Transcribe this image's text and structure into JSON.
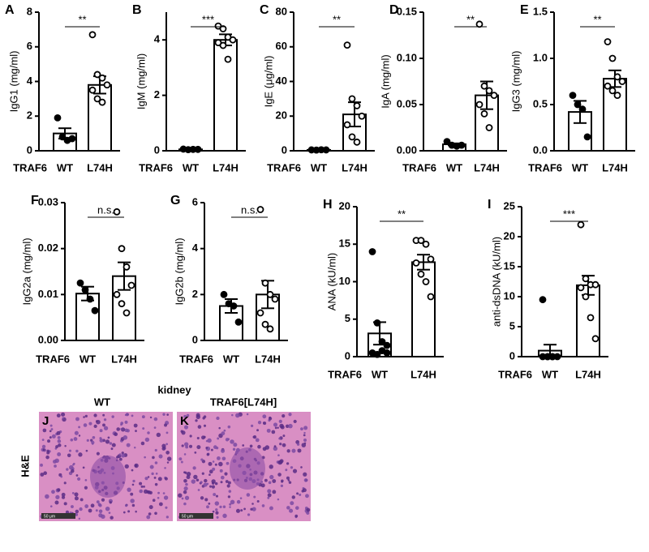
{
  "chart_data": [
    {
      "type": "bar",
      "panel": "A",
      "ylabel": "IgG1 (mg/ml)",
      "group_label": "TRAF6",
      "categories": [
        "WT",
        "L74H"
      ],
      "values": [
        1.0,
        3.8
      ],
      "errors": [
        0.3,
        0.5
      ],
      "points": [
        [
          1.9,
          0.8,
          0.6,
          0.7
        ],
        [
          6.7,
          4.4,
          4.2,
          3.8,
          3.5,
          3.0,
          2.8
        ]
      ],
      "significance": "**",
      "ylim": [
        0,
        8
      ],
      "yticks": [
        0,
        2,
        4,
        6,
        8
      ]
    },
    {
      "type": "bar",
      "panel": "B",
      "ylabel": "IgM (mg/ml)",
      "group_label": "TRAF6",
      "categories": [
        "WT",
        "L74H"
      ],
      "values": [
        0.05,
        4.0
      ],
      "errors": [
        0.02,
        0.2
      ],
      "points": [
        [
          0.06,
          0.04,
          0.05,
          0.05
        ],
        [
          4.5,
          4.4,
          4.1,
          4.0,
          3.9,
          3.8,
          3.3
        ]
      ],
      "significance": "***",
      "ylim": [
        0,
        5
      ],
      "yticks": [
        0,
        2,
        4
      ]
    },
    {
      "type": "bar",
      "panel": "C",
      "ylabel": "IgE (μg/ml)",
      "group_label": "TRAF6",
      "categories": [
        "WT",
        "L74H"
      ],
      "values": [
        0.5,
        21
      ],
      "errors": [
        0.2,
        7
      ],
      "points": [
        [
          0.5,
          0.4,
          0.6,
          0.5
        ],
        [
          61,
          30,
          26,
          20,
          15,
          8,
          5
        ]
      ],
      "significance": "**",
      "ylim": [
        0,
        80
      ],
      "yticks": [
        0,
        20,
        40,
        60,
        80
      ]
    },
    {
      "type": "bar",
      "panel": "D",
      "ylabel": "IgA (mg/ml)",
      "group_label": "TRAF6",
      "categories": [
        "WT",
        "L74H"
      ],
      "values": [
        0.007,
        0.06
      ],
      "errors": [
        0.001,
        0.015
      ],
      "points": [
        [
          0.01,
          0.006,
          0.005,
          0.006
        ],
        [
          0.137,
          0.07,
          0.065,
          0.06,
          0.05,
          0.04,
          0.025
        ]
      ],
      "significance": "**",
      "ylim": [
        0,
        0.15
      ],
      "yticks": [
        {
          "value": 0,
          "label": "0.00"
        },
        {
          "value": 0.05,
          "label": "0.05"
        },
        {
          "value": 0.1,
          "label": "0.10"
        },
        {
          "value": 0.15,
          "label": "0.15"
        }
      ]
    },
    {
      "type": "bar",
      "panel": "E",
      "ylabel": "IgG3 (mg/ml)",
      "group_label": "TRAF6",
      "categories": [
        "WT",
        "L74H"
      ],
      "values": [
        0.42,
        0.78
      ],
      "errors": [
        0.12,
        0.09
      ],
      "points": [
        [
          0.6,
          0.5,
          0.45,
          0.15
        ],
        [
          1.18,
          1.0,
          0.8,
          0.75,
          0.7,
          0.65,
          0.6
        ]
      ],
      "significance": "**",
      "ylim": [
        0,
        1.5
      ],
      "yticks": [
        {
          "value": 0,
          "label": "0.0"
        },
        0.5,
        {
          "value": 1,
          "label": "1.0"
        },
        1.5
      ]
    },
    {
      "type": "bar",
      "panel": "F",
      "ylabel": "IgG2a (mg/ml)",
      "group_label": "TRAF6",
      "categories": [
        "WT",
        "L74H"
      ],
      "values": [
        0.0102,
        0.014
      ],
      "errors": [
        0.0015,
        0.003
      ],
      "points": [
        [
          0.0125,
          0.011,
          0.009,
          0.0065
        ],
        [
          0.028,
          0.02,
          0.016,
          0.012,
          0.01,
          0.008,
          0.006
        ]
      ],
      "significance": "n.s.",
      "ylim": [
        0,
        0.03
      ],
      "yticks": [
        {
          "value": 0,
          "label": "0.00"
        },
        0.01,
        0.02,
        0.03
      ]
    },
    {
      "type": "bar",
      "panel": "G",
      "ylabel": "IgG2b (mg/ml)",
      "group_label": "TRAF6",
      "categories": [
        "WT",
        "L74H"
      ],
      "values": [
        1.5,
        2.0
      ],
      "errors": [
        0.3,
        0.6
      ],
      "points": [
        [
          2.0,
          1.6,
          1.5,
          0.8
        ],
        [
          5.7,
          2.5,
          2.0,
          1.8,
          1.2,
          0.7,
          0.5
        ]
      ],
      "significance": "n.s.",
      "ylim": [
        0,
        6
      ],
      "yticks": [
        0,
        2,
        4,
        6
      ]
    },
    {
      "type": "bar",
      "panel": "H",
      "ylabel": "ANA (kU/ml)",
      "group_label": "TRAF6",
      "categories": [
        "WT",
        "L74H"
      ],
      "values": [
        3.1,
        12.6
      ],
      "errors": [
        1.5,
        1.0
      ],
      "points": [
        [
          14,
          4.5,
          2,
          1.5,
          0.5,
          0.3,
          0.8,
          0.5
        ],
        [
          15.5,
          15.5,
          15,
          13,
          12.5,
          11,
          10,
          8
        ]
      ],
      "significance": "**",
      "ylim": [
        0,
        20
      ],
      "yticks": [
        0,
        5,
        10,
        15,
        20
      ]
    },
    {
      "type": "bar",
      "panel": "I",
      "ylabel": "anti-dsDNA (kU/ml)",
      "group_label": "TRAF6",
      "categories": [
        "WT",
        "L74H"
      ],
      "values": [
        1.0,
        11.9
      ],
      "errors": [
        1.0,
        1.6
      ],
      "points": [
        [
          9.5,
          0,
          0,
          0,
          0,
          0,
          0
        ],
        [
          22,
          13,
          12,
          12,
          11.5,
          10,
          6.5,
          3
        ]
      ],
      "significance": "***",
      "ylim": [
        0,
        25
      ],
      "yticks": [
        0,
        5,
        10,
        15,
        20,
        25
      ]
    }
  ],
  "histology": {
    "title": "kidney",
    "row_label": "H&E",
    "panels": [
      {
        "panel": "J",
        "label": "WT",
        "scale_bar": "50 μm"
      },
      {
        "panel": "K",
        "label": "TRAF6[L74H]",
        "scale_bar": "50 μm"
      }
    ]
  }
}
